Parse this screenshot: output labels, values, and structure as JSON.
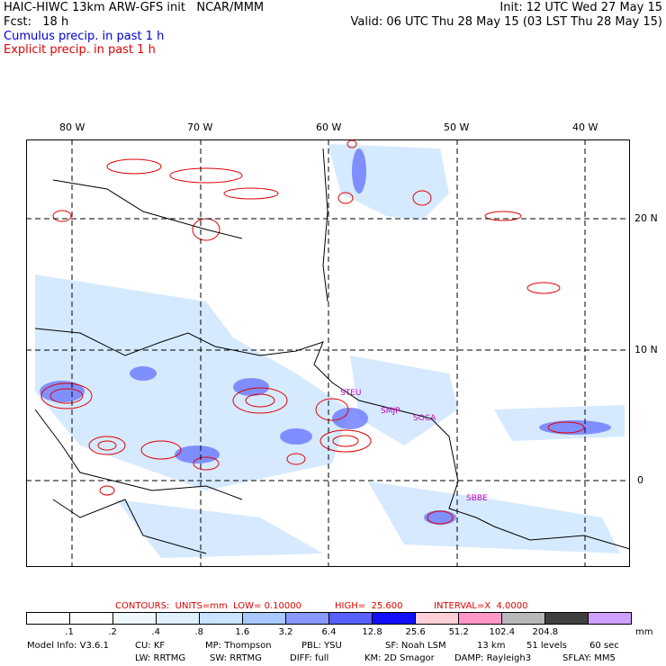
{
  "header": {
    "line1_left": "HAIC-HIWC 13km ARW-GFS init   NCAR/MMM",
    "line1_right": "Init: 12 UTC Wed 27 May 15",
    "line2_left": "Fcst:   18 h",
    "line2_right": "Valid: 06 UTC Thu 28 May 15 (03 LST Thu 28 May 15)",
    "line3": "Cumulus precip. in past 1 h",
    "line4": "Explicit precip. in past 1 h"
  },
  "map": {
    "lon_labels": [
      "80 W",
      "70 W",
      "60 W",
      "50 W",
      "40 W"
    ],
    "lat_labels": [
      "20 N",
      "10 N",
      "0"
    ],
    "sites": [
      "STEU",
      "SMJP",
      "SOCA",
      "SBBE"
    ],
    "colors": {
      "cumulus": "#4444ff",
      "explicit": "#e00000",
      "coast": "#000000"
    }
  },
  "contours": {
    "units": "CONTOURS:  UNITS=mm  LOW= 0.10000",
    "high": "HIGH=  25.600",
    "interval": "INTERVAL=X  4.0000"
  },
  "legend": {
    "colors": [
      "#ffffff",
      "#ffffff",
      "#f0f8ff",
      "#dff0ff",
      "#c8e4ff",
      "#a8c8ff",
      "#8898ff",
      "#5860ff",
      "#1010ff",
      "#ffd0d8",
      "#ff98c8",
      "#b8b8b8",
      "#404040",
      "#d0a0ff"
    ],
    "ticks": [
      ".1",
      ".2",
      ".4",
      ".8",
      "1.6",
      "3.2",
      "6.4",
      "12.8",
      "25.6",
      "51.2",
      "102.4",
      "204.8"
    ],
    "unit": "mm"
  },
  "footer": {
    "model_info": "Model Info: V3.6.1",
    "cu": "CU: KF",
    "mp": "MP: Thompson",
    "pbl": "PBL: YSU",
    "sf": "SF: Noah LSM",
    "res": "13 km",
    "levels": "51 levels",
    "dt": "60 sec",
    "lw": "LW: RRTMG",
    "sw": "SW: RRTMG",
    "diff": "DIFF: full",
    "km": "KM: 2D Smagor",
    "damp": "DAMP: Rayleigh3",
    "sflay": "SFLAY: MM5"
  }
}
